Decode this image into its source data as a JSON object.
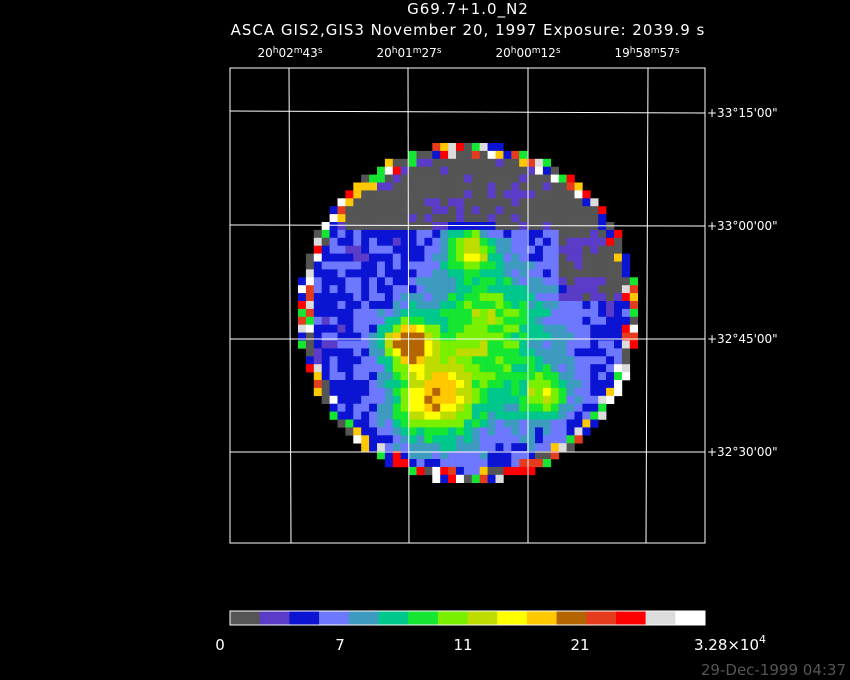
{
  "header": {
    "title": "G69.7+1.0_N2",
    "subtitle": "ASCA GIS2,GIS3 November 20, 1997 Exposure: 2039.9 s"
  },
  "ra_units": [
    "h",
    "m",
    "s"
  ],
  "ra_labels": [
    {
      "h": "20",
      "m": "02",
      "s": "43"
    },
    {
      "h": "20",
      "m": "01",
      "s": "27"
    },
    {
      "h": "20",
      "m": "00",
      "s": "12"
    },
    {
      "h": "19",
      "m": "58",
      "s": "57"
    }
  ],
  "dec_labels": [
    "+33°15'00\"",
    "+33°00'00\"",
    "+32°45'00\"",
    "+32°30'00\""
  ],
  "colorbar": {
    "colors": [
      "#555555",
      "#5a3cc8",
      "#0a14d2",
      "#6e78ff",
      "#3c9bbe",
      "#00c88c",
      "#14e632",
      "#78f000",
      "#bedc00",
      "#ffff00",
      "#ffc800",
      "#b46400",
      "#e63c1e",
      "#ff0000",
      "#dcdcdc",
      "#ffffff"
    ],
    "labels": [
      "0",
      "7",
      "11",
      "21"
    ],
    "max_label": {
      "mantissa": "3.28×10",
      "exponent": "4"
    }
  },
  "footer": {
    "timestamp": "29-Dec-1999 04:37"
  }
}
